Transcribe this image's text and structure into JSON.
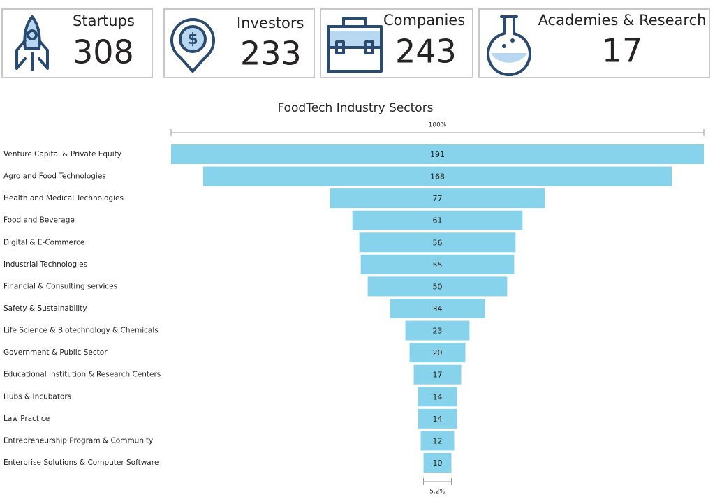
{
  "cards": [
    {
      "label": "Startups",
      "value": 308
    },
    {
      "label": "Investors",
      "value": 233
    },
    {
      "label": "Companies",
      "value": 243
    },
    {
      "label": "Academies & Research",
      "value": 17
    }
  ],
  "chart_data": {
    "type": "funnel",
    "title": "FoodTech Industry Sectors",
    "categories": [
      "Venture Capital & Private Equity",
      "Agro and Food Technologies",
      "Health and Medical Technologies",
      "Food and Beverage",
      "Digital & E-Commerce",
      "Industrial Technologies",
      "Financial & Consulting services",
      "Safety & Sustainability",
      "Life Science & Biotechnology & Chemicals",
      "Government & Public Sector",
      "Educational Institution & Research Centers",
      "Hubs & Incubators",
      "Law Practice",
      "Entrepreneurship Program & Community",
      "Enterprise Solutions & Computer Software"
    ],
    "values": [
      191,
      168,
      77,
      61,
      56,
      55,
      50,
      34,
      23,
      20,
      17,
      14,
      14,
      12,
      10
    ],
    "color": "#87d3ec",
    "first_percent_label": "100%",
    "last_percent_label": "5.2%"
  }
}
